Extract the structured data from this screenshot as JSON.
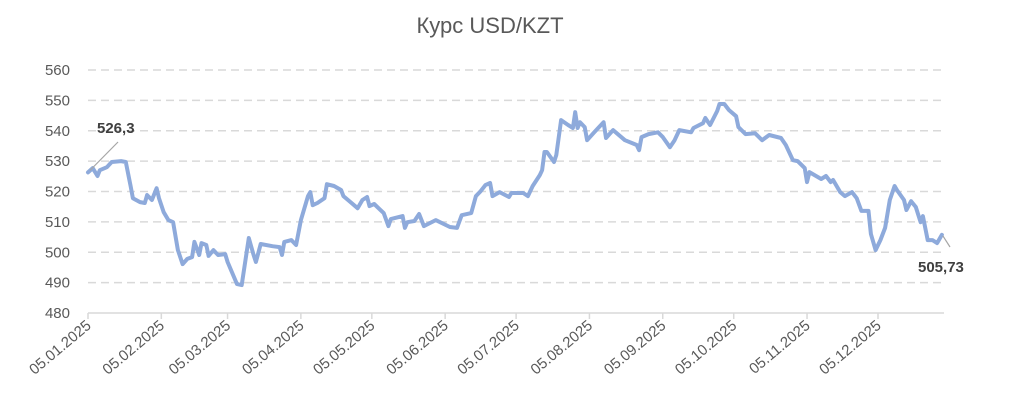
{
  "chart_data": {
    "type": "line",
    "title": "Курс USD/KZT",
    "xlabel": "",
    "ylabel": "",
    "x_unit": "days since 05.01.2025",
    "ylim": [
      480,
      560
    ],
    "yticks": [
      480,
      490,
      500,
      510,
      520,
      530,
      540,
      550,
      560
    ],
    "ytick_labels": [
      "480",
      "490",
      "500",
      "510",
      "520",
      "530",
      "540",
      "550",
      "560"
    ],
    "xticks": [
      0,
      31,
      59,
      90,
      120,
      151,
      181,
      212,
      243,
      273,
      304,
      334
    ],
    "xtick_labels": [
      "05.01.2025",
      "05.02.2025",
      "05.03.2025",
      "05.04.2025",
      "05.05.2025",
      "05.06.2025",
      "05.07.2025",
      "05.08.2025",
      "05.09.2025",
      "05.10.2025",
      "05.11.2025",
      "05.12.2025"
    ],
    "xlim": [
      0,
      362
    ],
    "grid": "horizontal dashed",
    "legend": "none",
    "series": [
      {
        "name": "USD/KZT",
        "color": "#8eaadb",
        "x": [
          0,
          2,
          4,
          5,
          8,
          10,
          14,
          16,
          18,
          19,
          22,
          24,
          25,
          27,
          29,
          30,
          32,
          34,
          36,
          38,
          40,
          42,
          44,
          45,
          47,
          48,
          50,
          51,
          53,
          55,
          58,
          59,
          63,
          65,
          68,
          70,
          71,
          73,
          78,
          81,
          82,
          83,
          86,
          88,
          90,
          93,
          94,
          95,
          97,
          100,
          101,
          104,
          107,
          108,
          111,
          114,
          116,
          118,
          119,
          121,
          125,
          127,
          128,
          133,
          134,
          135,
          138,
          140,
          142,
          147,
          153,
          156,
          158,
          162,
          164,
          166,
          168,
          170,
          171,
          174,
          178,
          179,
          184,
          186,
          188,
          191,
          192,
          193,
          194,
          197,
          198,
          200,
          203,
          205,
          206,
          207,
          208,
          210,
          211,
          214,
          218,
          219,
          222,
          227,
          232,
          233,
          234,
          237,
          241,
          243,
          246,
          248,
          250,
          255,
          256,
          260,
          261,
          263,
          266,
          267,
          269,
          271,
          274,
          275,
          278,
          282,
          285,
          288,
          293,
          295,
          298,
          300,
          303,
          304,
          305,
          310,
          312,
          314,
          315,
          318,
          320,
          323,
          325,
          327,
          330,
          331,
          333,
          335,
          337,
          339,
          341,
          342,
          345,
          346,
          348,
          350,
          352,
          353,
          355,
          357,
          359,
          361
        ],
        "values": [
          526.3,
          527.7,
          525.1,
          527.0,
          528.0,
          529.7,
          530.0,
          529.7,
          521.8,
          517.8,
          516.5,
          516.2,
          518.8,
          517.2,
          521.1,
          517.8,
          513.2,
          510.6,
          509.9,
          500.7,
          496.1,
          497.8,
          498.4,
          503.4,
          499.1,
          503.0,
          502.4,
          498.8,
          500.7,
          499.1,
          499.4,
          496.8,
          489.5,
          489.2,
          504.7,
          499.1,
          496.8,
          502.7,
          502.0,
          501.7,
          499.1,
          503.4,
          504.0,
          502.4,
          510.6,
          518.5,
          519.8,
          515.5,
          516.2,
          517.8,
          522.4,
          521.8,
          520.5,
          518.5,
          516.5,
          514.5,
          517.2,
          518.2,
          515.2,
          515.9,
          512.9,
          508.6,
          510.9,
          511.9,
          508.0,
          509.9,
          510.3,
          512.6,
          508.6,
          510.6,
          508.3,
          508.0,
          512.2,
          512.9,
          518.5,
          520.1,
          522.1,
          522.8,
          518.5,
          519.8,
          518.2,
          519.5,
          519.5,
          518.5,
          521.8,
          525.4,
          527.0,
          533.0,
          533.0,
          529.7,
          532.0,
          543.5,
          541.9,
          540.9,
          546.1,
          540.9,
          542.8,
          541.2,
          536.9,
          539.5,
          542.8,
          537.6,
          540.2,
          536.9,
          535.3,
          533.6,
          537.9,
          538.9,
          539.5,
          537.9,
          534.6,
          536.9,
          540.2,
          539.5,
          540.9,
          542.5,
          544.2,
          541.9,
          546.5,
          548.8,
          548.8,
          546.8,
          544.8,
          541.2,
          538.9,
          539.2,
          536.9,
          538.6,
          537.6,
          535.3,
          530.3,
          530.0,
          527.7,
          523.1,
          526.4,
          524.1,
          525.1,
          523.1,
          523.8,
          519.8,
          518.5,
          519.8,
          517.8,
          513.6,
          513.6,
          506.0,
          500.7,
          504.0,
          508.0,
          517.2,
          521.8,
          520.5,
          517.2,
          513.9,
          516.8,
          514.9,
          509.9,
          511.9,
          504.0,
          504.0,
          503.0,
          505.73
        ]
      }
    ],
    "annotations": [
      {
        "label": "526,3",
        "x": 0,
        "y": 526.3
      },
      {
        "label": "505,73",
        "x": 361,
        "y": 505.73
      }
    ]
  }
}
